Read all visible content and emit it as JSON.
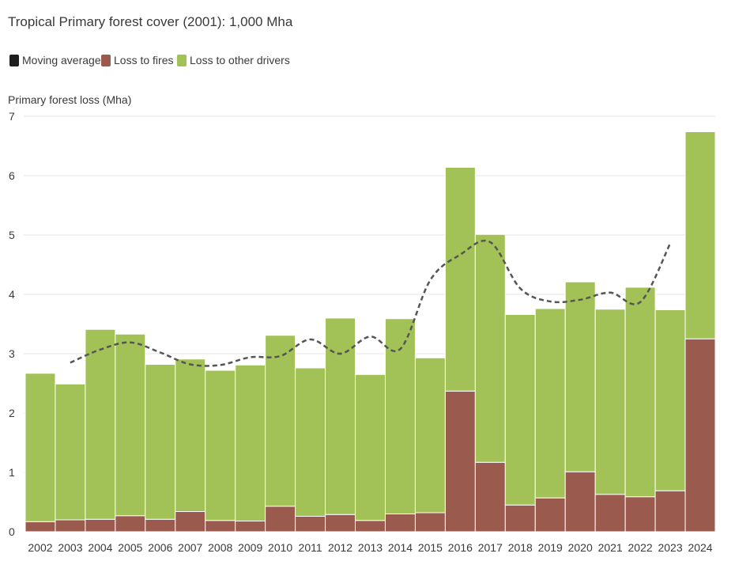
{
  "chart_data": {
    "type": "bar",
    "stacked": true,
    "title": "Tropical Primary forest cover (2001): 1,000 Mha",
    "ylabel": "Primary forest loss (Mha)",
    "ylim": [
      0,
      7
    ],
    "yticks": [
      0,
      1,
      2,
      3,
      4,
      5,
      6,
      7
    ],
    "grid": true,
    "legend_position": "top-left",
    "categories": [
      "2002",
      "2003",
      "2004",
      "2005",
      "2006",
      "2007",
      "2008",
      "2009",
      "2010",
      "2011",
      "2012",
      "2013",
      "2014",
      "2015",
      "2016",
      "2017",
      "2018",
      "2019",
      "2020",
      "2021",
      "2022",
      "2023",
      "2024"
    ],
    "series": [
      {
        "name": "Loss to fires",
        "color": "#9b5a4e",
        "values": [
          0.17,
          0.2,
          0.21,
          0.27,
          0.21,
          0.34,
          0.19,
          0.18,
          0.43,
          0.26,
          0.29,
          0.19,
          0.3,
          0.32,
          2.37,
          1.17,
          0.45,
          0.57,
          1.01,
          0.63,
          0.59,
          0.69,
          3.25
        ]
      },
      {
        "name": "Loss to other drivers",
        "color": "#a2c257",
        "values": [
          2.5,
          2.29,
          3.2,
          3.06,
          2.61,
          2.57,
          2.53,
          2.63,
          2.88,
          2.5,
          3.31,
          2.46,
          3.29,
          2.61,
          3.77,
          3.84,
          3.21,
          3.19,
          3.2,
          3.12,
          3.53,
          3.05,
          3.49
        ]
      }
    ],
    "moving_average": {
      "name": "Moving average",
      "color": "#555555",
      "style": "dashed",
      "x": [
        "2003",
        "2004",
        "2005",
        "2006",
        "2007",
        "2008",
        "2009",
        "2010",
        "2011",
        "2012",
        "2013",
        "2014",
        "2015",
        "2016",
        "2017",
        "2018",
        "2019",
        "2020",
        "2021",
        "2022",
        "2023"
      ],
      "values": [
        2.85,
        3.07,
        3.19,
        3.02,
        2.82,
        2.81,
        2.94,
        2.96,
        3.24,
        3.0,
        3.29,
        3.08,
        4.24,
        4.67,
        4.88,
        4.1,
        3.88,
        3.91,
        4.03,
        3.87,
        4.86
      ]
    },
    "legend": [
      {
        "label": "Moving average",
        "color": "#1e1e1e"
      },
      {
        "label": "Loss to fires",
        "color": "#9b5a4e"
      },
      {
        "label": "Loss to other drivers",
        "color": "#a2c257"
      }
    ]
  }
}
